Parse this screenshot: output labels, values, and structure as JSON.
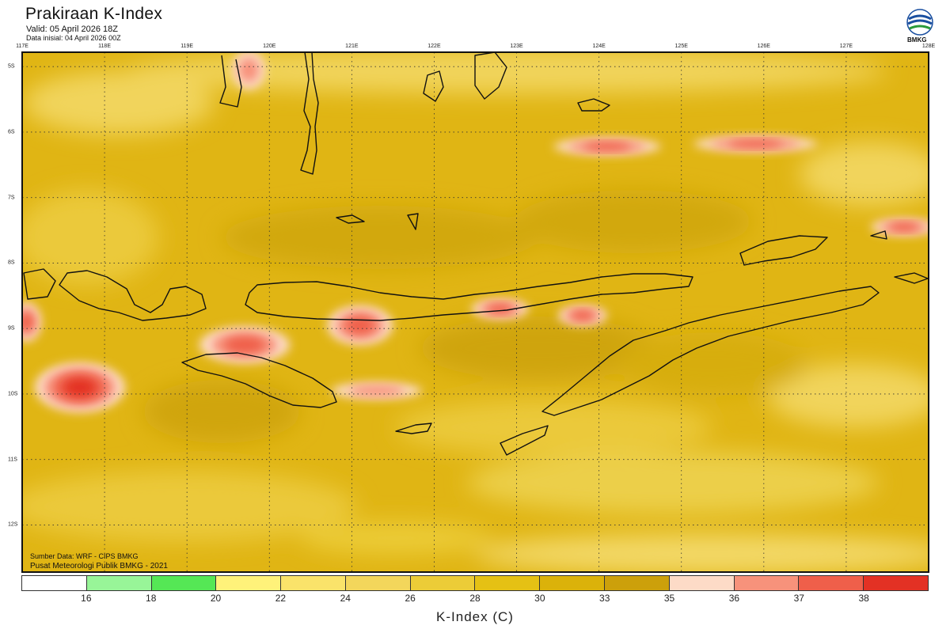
{
  "header": {
    "title": "Prakiraan K-Index",
    "valid": "Valid: 05 April 2026 18Z",
    "initial": "Data inisial: 04 April 2026 00Z"
  },
  "logo": {
    "text": "BMKG",
    "icon": "bmkg-logo-icon"
  },
  "map": {
    "lon_ticks": [
      "117E",
      "118E",
      "119E",
      "120E",
      "121E",
      "122E",
      "123E",
      "124E",
      "125E",
      "126E",
      "127E",
      "128E"
    ],
    "lat_ticks": [
      "5S",
      "6S",
      "7S",
      "8S",
      "9S",
      "10S",
      "11S",
      "12S"
    ],
    "lon_range": [
      117,
      128
    ],
    "lat_range": [
      -4.78,
      -12.72
    ],
    "gridlines": true,
    "base_color": "#e0b514",
    "features": [
      {
        "lon": 124.1,
        "lat": -6.22,
        "rx": 0.65,
        "ry": 0.13,
        "value": 37
      },
      {
        "lon": 125.9,
        "lat": -6.18,
        "rx": 0.75,
        "ry": 0.12,
        "value": 37
      },
      {
        "lon": 127.7,
        "lat": -7.45,
        "rx": 0.4,
        "ry": 0.13,
        "value": 37
      },
      {
        "lon": 119.7,
        "lat": -9.25,
        "rx": 0.55,
        "ry": 0.28,
        "value": 37
      },
      {
        "lon": 121.1,
        "lat": -8.95,
        "rx": 0.4,
        "ry": 0.3,
        "value": 37
      },
      {
        "lon": 122.8,
        "lat": -8.7,
        "rx": 0.35,
        "ry": 0.15,
        "value": 37
      },
      {
        "lon": 123.8,
        "lat": -8.8,
        "rx": 0.3,
        "ry": 0.15,
        "value": 37
      },
      {
        "lon": 121.3,
        "lat": -9.95,
        "rx": 0.55,
        "ry": 0.13,
        "value": 36
      },
      {
        "lon": 117.7,
        "lat": -9.9,
        "rx": 0.55,
        "ry": 0.38,
        "value": 38
      },
      {
        "lon": 117.05,
        "lat": -8.9,
        "rx": 0.18,
        "ry": 0.3,
        "value": 37
      },
      {
        "lon": 119.75,
        "lat": -5.05,
        "rx": 0.2,
        "ry": 0.3,
        "value": 36
      }
    ]
  },
  "footer": {
    "source": "Sumber Data: WRF - CIPS BMKG",
    "center": "Pusat Meteorologi Publik BMKG - 2021"
  },
  "colorbar": {
    "title": "K-Index (C)",
    "labels": [
      "16",
      "18",
      "20",
      "22",
      "24",
      "26",
      "28",
      "30",
      "33",
      "35",
      "36",
      "37",
      "38"
    ],
    "colors": [
      "#ffffff",
      "#98f598",
      "#55e755",
      "#fff27a",
      "#fae36a",
      "#f3d65b",
      "#eccc37",
      "#e5c114",
      "#dbb20a",
      "#cca00b",
      "#fddbc7",
      "#f7927b",
      "#ef5f4a",
      "#e33124"
    ]
  }
}
